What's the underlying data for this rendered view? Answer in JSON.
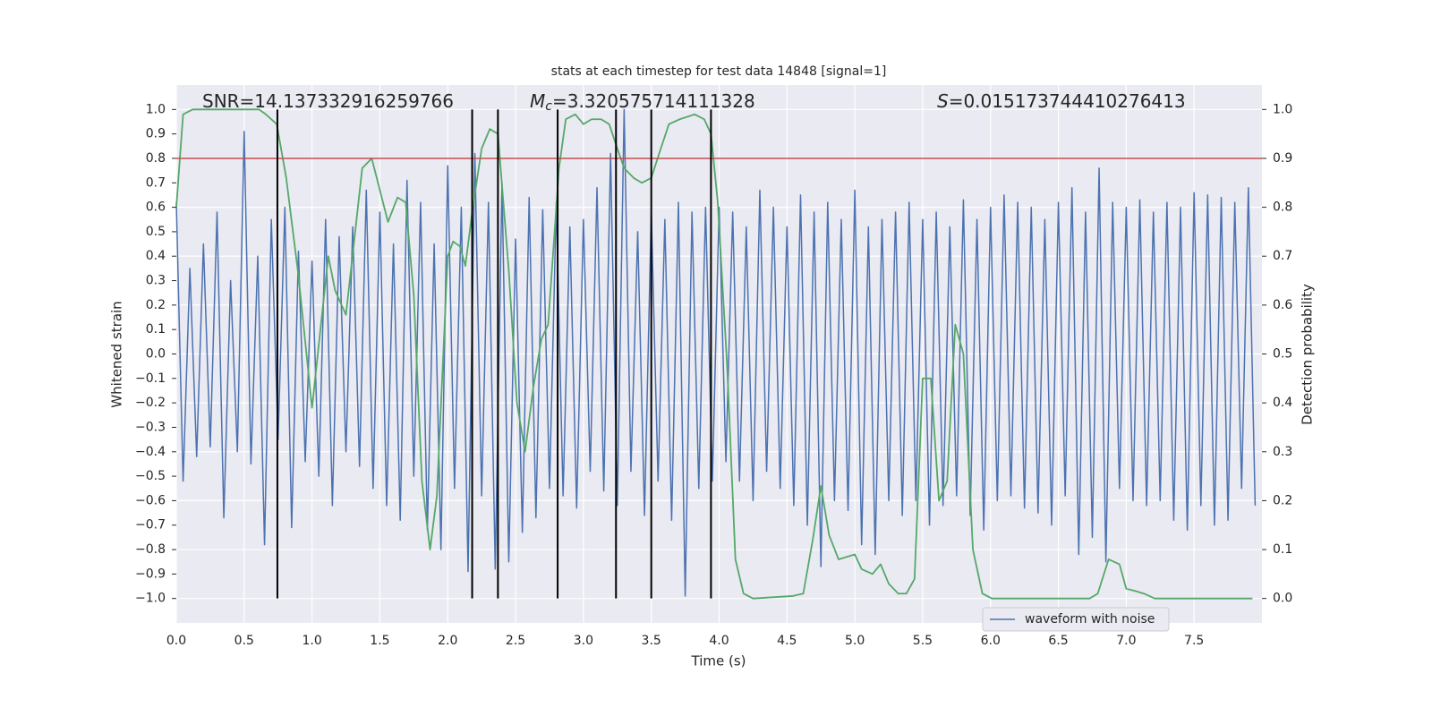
{
  "chart_data": {
    "type": "line",
    "title": "stats at each timestep for test data 14848 [signal=1]",
    "xlabel": "Time (s)",
    "ylabel": "Whitened strain",
    "y2label": "Detection probability",
    "xlim": [
      0,
      8
    ],
    "ylim": [
      -1.1,
      1.1
    ],
    "y2lim": [
      -0.05,
      1.05
    ],
    "grid": true,
    "legend": "lower right",
    "xticks": [
      {
        "value": 0,
        "label": "0.0"
      },
      {
        "value": 0.5,
        "label": "0.5"
      },
      {
        "value": 1,
        "label": "1.0"
      },
      {
        "value": 1.5,
        "label": "1.5"
      },
      {
        "value": 2,
        "label": "2.0"
      },
      {
        "value": 2.5,
        "label": "2.5"
      },
      {
        "value": 3,
        "label": "3.0"
      },
      {
        "value": 3.5,
        "label": "3.5"
      },
      {
        "value": 4,
        "label": "4.0"
      },
      {
        "value": 4.5,
        "label": "4.5"
      },
      {
        "value": 5,
        "label": "5.0"
      },
      {
        "value": 5.5,
        "label": "5.5"
      },
      {
        "value": 6,
        "label": "6.0"
      },
      {
        "value": 6.5,
        "label": "6.5"
      },
      {
        "value": 7,
        "label": "7.0"
      },
      {
        "value": 7.5,
        "label": "7.5"
      }
    ],
    "yticks": [
      {
        "value": -1,
        "label": "−1.0"
      },
      {
        "value": -0.9,
        "label": "−0.9"
      },
      {
        "value": -0.8,
        "label": "−0.8"
      },
      {
        "value": -0.7,
        "label": "−0.7"
      },
      {
        "value": -0.6,
        "label": "−0.6"
      },
      {
        "value": -0.5,
        "label": "−0.5"
      },
      {
        "value": -0.4,
        "label": "−0.4"
      },
      {
        "value": -0.3,
        "label": "−0.3"
      },
      {
        "value": -0.2,
        "label": "−0.2"
      },
      {
        "value": -0.1,
        "label": "−0.1"
      },
      {
        "value": 0,
        "label": "0.0"
      },
      {
        "value": 0.1,
        "label": "0.1"
      },
      {
        "value": 0.2,
        "label": "0.2"
      },
      {
        "value": 0.3,
        "label": "0.3"
      },
      {
        "value": 0.4,
        "label": "0.4"
      },
      {
        "value": 0.5,
        "label": "0.5"
      },
      {
        "value": 0.6,
        "label": "0.6"
      },
      {
        "value": 0.7,
        "label": "0.7"
      },
      {
        "value": 0.8,
        "label": "0.8"
      },
      {
        "value": 0.9,
        "label": "0.9"
      },
      {
        "value": 1,
        "label": "1.0"
      }
    ],
    "y2ticks": [
      {
        "value": 0,
        "label": "0.0"
      },
      {
        "value": 0.1,
        "label": "0.1"
      },
      {
        "value": 0.2,
        "label": "0.2"
      },
      {
        "value": 0.3,
        "label": "0.3"
      },
      {
        "value": 0.4,
        "label": "0.4"
      },
      {
        "value": 0.5,
        "label": "0.5"
      },
      {
        "value": 0.6,
        "label": "0.6"
      },
      {
        "value": 0.7,
        "label": "0.7"
      },
      {
        "value": 0.8,
        "label": "0.8"
      },
      {
        "value": 0.9,
        "label": "0.9"
      },
      {
        "value": 1,
        "label": "1.0"
      }
    ],
    "series": [
      {
        "name": "waveform with noise",
        "color": "#4c72b0",
        "x": [
          0,
          0.05,
          0.1,
          0.15,
          0.2,
          0.25,
          0.3,
          0.35,
          0.4,
          0.45,
          0.5,
          0.55,
          0.6,
          0.65,
          0.7,
          0.75,
          0.8,
          0.85,
          0.9,
          0.95,
          1,
          1.05,
          1.1,
          1.15,
          1.2,
          1.25,
          1.3,
          1.35,
          1.4,
          1.45,
          1.5,
          1.55,
          1.6,
          1.65,
          1.7,
          1.75,
          1.8,
          1.85,
          1.9,
          1.95,
          2,
          2.05,
          2.1,
          2.15,
          2.2,
          2.25,
          2.3,
          2.35,
          2.4,
          2.45,
          2.5,
          2.55,
          2.6,
          2.65,
          2.7,
          2.75,
          2.8,
          2.85,
          2.9,
          2.95,
          3,
          3.05,
          3.1,
          3.15,
          3.2,
          3.25,
          3.3,
          3.35,
          3.4,
          3.45,
          3.5,
          3.55,
          3.6,
          3.65,
          3.7,
          3.75,
          3.8,
          3.85,
          3.9,
          3.95,
          4,
          4.05,
          4.1,
          4.15,
          4.2,
          4.25,
          4.3,
          4.35,
          4.4,
          4.45,
          4.5,
          4.55,
          4.6,
          4.65,
          4.7,
          4.75,
          4.8,
          4.85,
          4.9,
          4.95,
          5,
          5.05,
          5.1,
          5.15,
          5.2,
          5.25,
          5.3,
          5.35,
          5.4,
          5.45,
          5.5,
          5.55,
          5.6,
          5.65,
          5.7,
          5.75,
          5.8,
          5.85,
          5.9,
          5.95,
          6,
          6.05,
          6.1,
          6.15,
          6.2,
          6.25,
          6.3,
          6.35,
          6.4,
          6.45,
          6.5,
          6.55,
          6.6,
          6.65,
          6.7,
          6.75,
          6.8,
          6.85,
          6.9,
          6.95,
          7,
          7.05,
          7.1,
          7.15,
          7.2,
          7.25,
          7.3,
          7.35,
          7.4,
          7.45,
          7.5,
          7.55,
          7.6,
          7.65,
          7.7,
          7.75,
          7.8,
          7.85,
          7.9,
          7.95
        ],
        "values": [
          0.62,
          -0.52,
          0.35,
          -0.42,
          0.45,
          -0.38,
          0.58,
          -0.67,
          0.3,
          -0.4,
          0.91,
          -0.45,
          0.4,
          -0.78,
          0.55,
          -0.35,
          0.6,
          -0.71,
          0.42,
          -0.44,
          0.38,
          -0.5,
          0.55,
          -0.62,
          0.48,
          -0.4,
          0.52,
          -0.46,
          0.67,
          -0.55,
          0.58,
          -0.62,
          0.45,
          -0.68,
          0.71,
          -0.5,
          0.62,
          -0.72,
          0.45,
          -0.8,
          0.77,
          -0.55,
          0.6,
          -0.89,
          0.82,
          -0.58,
          0.62,
          -0.88,
          0.7,
          -0.85,
          0.47,
          -0.73,
          0.64,
          -0.67,
          0.59,
          -0.55,
          0.62,
          -0.58,
          0.52,
          -0.63,
          0.55,
          -0.48,
          0.68,
          -0.56,
          0.82,
          -0.62,
          1.0,
          -0.48,
          0.5,
          -0.66,
          0.58,
          -0.52,
          0.55,
          -0.68,
          0.62,
          -0.99,
          0.58,
          -0.55,
          0.6,
          -0.52,
          0.6,
          -0.44,
          0.58,
          -0.52,
          0.52,
          -0.6,
          0.67,
          -0.48,
          0.6,
          -0.55,
          0.52,
          -0.62,
          0.65,
          -0.7,
          0.58,
          -0.87,
          0.62,
          -0.6,
          0.55,
          -0.64,
          0.67,
          -0.78,
          0.52,
          -0.82,
          0.55,
          -0.6,
          0.58,
          -0.66,
          0.62,
          -0.6,
          0.55,
          -0.7,
          0.58,
          -0.62,
          0.52,
          -0.58,
          0.63,
          -0.66,
          0.55,
          -0.72,
          0.6,
          -0.6,
          0.65,
          -0.58,
          0.62,
          -0.63,
          0.6,
          -0.65,
          0.55,
          -0.7,
          0.62,
          -0.58,
          0.68,
          -0.82,
          0.58,
          -0.75,
          0.76,
          -0.85,
          0.62,
          -0.55,
          0.6,
          -0.6,
          0.63,
          -0.62,
          0.58,
          -0.6,
          0.62,
          -0.68,
          0.6,
          -0.72,
          0.66,
          -0.62,
          0.65,
          -0.7,
          0.64,
          -0.68,
          0.62,
          -0.55,
          0.68,
          -0.62
        ]
      },
      {
        "color": "#55a868",
        "axis": "y2",
        "x": [
          0,
          0.05,
          0.12,
          0.61,
          0.66,
          0.74,
          0.81,
          0.9,
          1.0,
          1.12,
          1.17,
          1.25,
          1.37,
          1.44,
          1.56,
          1.63,
          1.69,
          1.75,
          1.81,
          1.87,
          1.92,
          2.0,
          2.04,
          2.09,
          2.13,
          2.18,
          2.25,
          2.31,
          2.37,
          2.45,
          2.51,
          2.57,
          2.63,
          2.69,
          2.74,
          2.82,
          2.87,
          2.94,
          3.0,
          3.06,
          3.13,
          3.19,
          3.25,
          3.3,
          3.37,
          3.43,
          3.5,
          3.57,
          3.63,
          3.71,
          3.82,
          3.89,
          3.94,
          3.99,
          4.06,
          4.12,
          4.18,
          4.25,
          4.54,
          4.62,
          4.69,
          4.75,
          4.81,
          4.88,
          5.0,
          5.05,
          5.13,
          5.19,
          5.25,
          5.32,
          5.38,
          5.44,
          5.5,
          5.56,
          5.62,
          5.68,
          5.74,
          5.8,
          5.87,
          5.94,
          6.01,
          6.08,
          6.73,
          6.79,
          6.87,
          6.95,
          7.0,
          7.07,
          7.13,
          7.21,
          7.63,
          7.93
        ],
        "values": [
          0.8,
          0.99,
          1.0,
          1.0,
          0.99,
          0.97,
          0.86,
          0.66,
          0.39,
          0.7,
          0.63,
          0.58,
          0.88,
          0.9,
          0.77,
          0.82,
          0.81,
          0.62,
          0.24,
          0.1,
          0.21,
          0.7,
          0.73,
          0.72,
          0.68,
          0.79,
          0.92,
          0.96,
          0.95,
          0.67,
          0.4,
          0.3,
          0.43,
          0.53,
          0.56,
          0.88,
          0.98,
          0.99,
          0.97,
          0.98,
          0.98,
          0.97,
          0.92,
          0.88,
          0.86,
          0.85,
          0.86,
          0.92,
          0.97,
          0.98,
          0.99,
          0.98,
          0.95,
          0.81,
          0.47,
          0.08,
          0.01,
          0.0,
          0.005,
          0.01,
          0.12,
          0.23,
          0.13,
          0.08,
          0.09,
          0.06,
          0.05,
          0.07,
          0.03,
          0.01,
          0.01,
          0.04,
          0.45,
          0.45,
          0.2,
          0.24,
          0.56,
          0.5,
          0.1,
          0.01,
          0.0,
          0.0,
          0.0,
          0.01,
          0.08,
          0.07,
          0.02,
          0.015,
          0.01,
          0.0,
          0.0,
          0.0
        ]
      }
    ],
    "threshold": {
      "value": 0.8,
      "color": "#c44e52"
    },
    "vlines": {
      "x": [
        0.745,
        2.18,
        2.37,
        2.81,
        3.24,
        3.5,
        3.94
      ],
      "ymin": -1.0,
      "ymax": 1.0,
      "color": "#000000"
    },
    "annotations": [
      {
        "parts": [
          {
            "text": "SNR=14.137332916259766",
            "style": "normal"
          }
        ]
      },
      {
        "parts": [
          {
            "text": "M",
            "style": "italic"
          },
          {
            "text": "c",
            "style": "italic-sub"
          },
          {
            "text": "=3.320575714111328",
            "style": "normal"
          }
        ]
      },
      {
        "parts": [
          {
            "text": "S",
            "style": "italic"
          },
          {
            "text": "=0.015173744410276413",
            "style": "normal"
          }
        ]
      }
    ]
  }
}
